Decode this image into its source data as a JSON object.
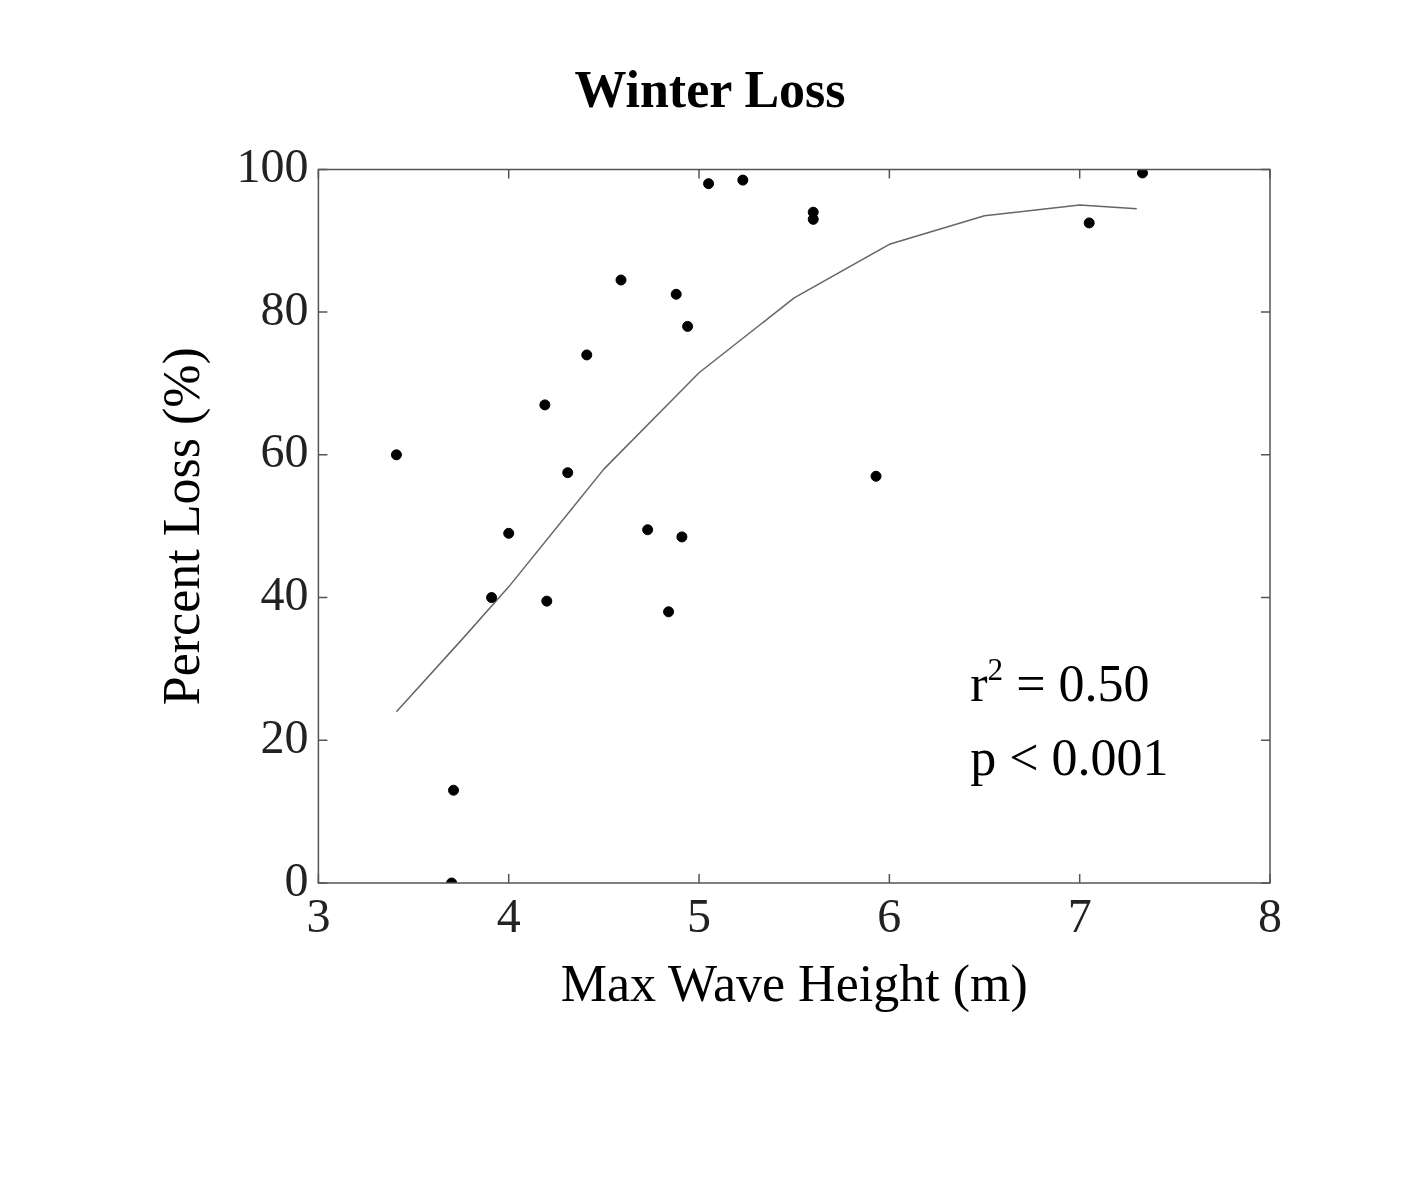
{
  "chart_data": {
    "type": "scatter",
    "title": "Winter Loss",
    "xlabel": "Max Wave Height (m)",
    "ylabel": "Percent Loss (%)",
    "annotations": [
      "r$^{2}$ = 0.50",
      "p < 0.001"
    ],
    "xlim": [
      3,
      8
    ],
    "ylim": [
      0,
      100
    ],
    "xticks": [
      3,
      4,
      5,
      6,
      7,
      8
    ],
    "yticks": [
      0,
      20,
      40,
      60,
      80,
      100
    ],
    "grid": false,
    "legend": false,
    "marker": "circle",
    "series": [
      {
        "color": "#000000",
        "x": [
          3.41,
          3.71,
          3.7,
          3.91,
          4.0,
          4.19,
          4.2,
          4.31,
          4.41,
          4.59,
          4.73,
          4.84,
          4.88,
          4.91,
          4.94,
          5.05,
          5.23,
          5.6,
          5.6,
          5.93,
          7.05,
          7.33
        ],
        "values": [
          60,
          13,
          0,
          40,
          49,
          67,
          39.5,
          57.5,
          74,
          84.5,
          49.5,
          38,
          82.5,
          48.5,
          78,
          98,
          98.5,
          94,
          93,
          57,
          92.5,
          99.5
        ]
      },
      {
        "type": "line",
        "color": "#666666",
        "marker": "none",
        "x": [
          3.41,
          3.75,
          4,
          4.5,
          5,
          5.5,
          6,
          6.5,
          7,
          7.3
        ],
        "values": [
          24,
          34,
          41.5,
          58,
          71.5,
          82,
          89.5,
          93.5,
          95,
          94.5
        ]
      }
    ]
  }
}
